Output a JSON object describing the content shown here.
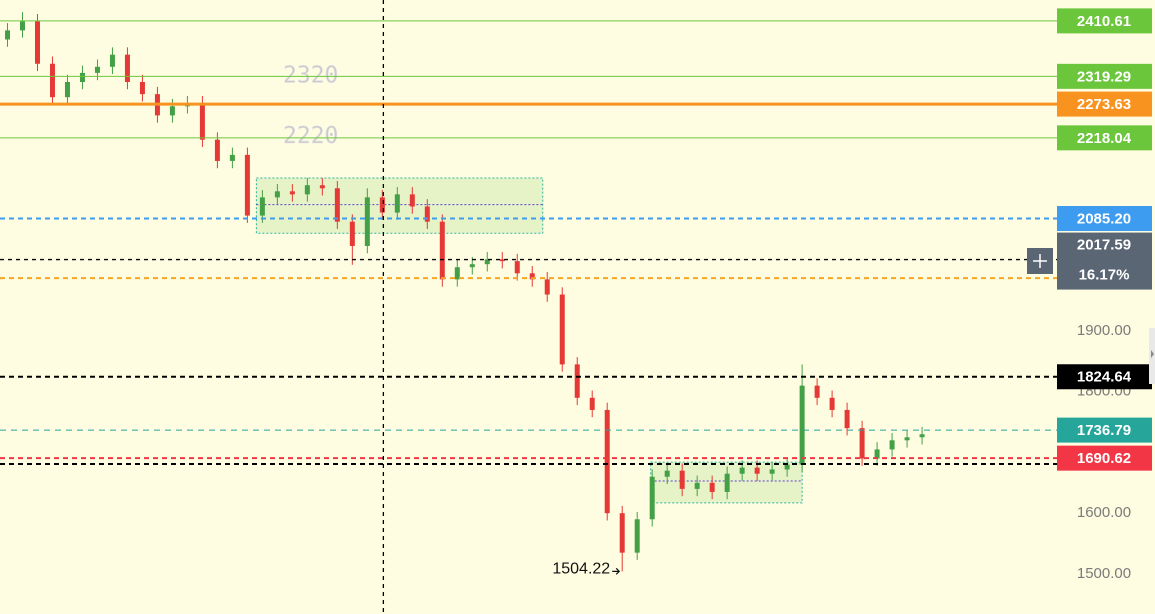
{
  "chart_data": {
    "type": "candlestick",
    "xlim": [
      -0.5,
      70
    ],
    "ylim": [
      1434,
      2445
    ],
    "yticks": [
      {
        "value": 1500,
        "label": "1500.00"
      },
      {
        "value": 1600,
        "label": "1600.00"
      },
      {
        "value": 1800,
        "label": "1800.00"
      },
      {
        "value": 1900,
        "label": "1900.00"
      }
    ],
    "up_color": "#43a047",
    "down_color": "#e53935",
    "open": [
      2380,
      2395,
      2410,
      2340,
      2285,
      2310,
      2325,
      2335,
      2355,
      2310,
      2290,
      2255,
      2270,
      2275,
      2215,
      2180,
      2190,
      2090,
      2120,
      2130,
      2125,
      2140,
      2135,
      2080,
      2040,
      2120,
      2095,
      2125,
      2105,
      2080,
      1985,
      2005,
      2010,
      2018,
      2015,
      1995,
      1985,
      1960,
      1845,
      1790,
      1770,
      1600,
      1535,
      1590,
      1660,
      1670,
      1640,
      1650,
      1635,
      1665,
      1675,
      1665,
      1672,
      1680,
      1810,
      1790,
      1770,
      1740,
      1690,
      1705,
      1720,
      1725
    ],
    "high": [
      2407,
      2425,
      2422,
      2352,
      2322,
      2337,
      2347,
      2367,
      2367,
      2322,
      2302,
      2282,
      2287,
      2287,
      2227,
      2202,
      2202,
      2132,
      2142,
      2142,
      2152,
      2152,
      2147,
      2092,
      2135,
      2132,
      2137,
      2137,
      2117,
      2092,
      2017,
      2022,
      2030,
      2030,
      2027,
      2007,
      1997,
      1972,
      1857,
      1802,
      1782,
      1612,
      1602,
      1672,
      1682,
      1682,
      1662,
      1662,
      1677,
      1687,
      1687,
      1684,
      1692,
      1845,
      1822,
      1802,
      1782,
      1752,
      1717,
      1732,
      1737,
      1742
    ],
    "low": [
      2368,
      2383,
      2328,
      2273,
      2273,
      2298,
      2313,
      2323,
      2298,
      2278,
      2243,
      2243,
      2258,
      2203,
      2168,
      2168,
      2078,
      2078,
      2108,
      2113,
      2113,
      2123,
      2068,
      2009,
      2028,
      2083,
      2083,
      2093,
      2068,
      1973,
      1973,
      1993,
      1998,
      2003,
      1983,
      1973,
      1948,
      1833,
      1778,
      1758,
      1588,
      1504.22,
      1523,
      1578,
      1648,
      1628,
      1628,
      1623,
      1623,
      1653,
      1653,
      1653,
      1660,
      1668,
      1778,
      1758,
      1728,
      1678,
      1678,
      1693,
      1708,
      1713
    ],
    "close": [
      2395,
      2410,
      2340,
      2285,
      2310,
      2325,
      2335,
      2355,
      2310,
      2290,
      2255,
      2270,
      2275,
      2215,
      2180,
      2190,
      2090,
      2120,
      2130,
      2125,
      2140,
      2135,
      2080,
      2040,
      2120,
      2095,
      2125,
      2105,
      2080,
      1985,
      2005,
      2010,
      2018,
      2015,
      1995,
      1985,
      1960,
      1845,
      1790,
      1770,
      1600,
      1535,
      1590,
      1660,
      1670,
      1640,
      1650,
      1635,
      1665,
      1675,
      1665,
      1672,
      1680,
      1810,
      1790,
      1770,
      1740,
      1690,
      1705,
      1720,
      1725,
      1730
    ],
    "levels": [
      {
        "value": 2410.61,
        "label": "2410.61",
        "color": "#6cc63c",
        "style": "solid"
      },
      {
        "value": 2319.29,
        "label": "2319.29",
        "color": "#6cc63c",
        "style": "solid"
      },
      {
        "value": 2273.63,
        "label": "2273.63",
        "color": "#f7931e",
        "style": "thick"
      },
      {
        "value": 2218.04,
        "label": "2218.04",
        "color": "#6cc63c",
        "style": "solid"
      },
      {
        "value": 2085.2,
        "label": "2085.20",
        "color": "#3d9bf0",
        "style": "dashed"
      },
      {
        "value": 1987,
        "color": "#f5a623",
        "style": "dashed"
      },
      {
        "value": 1824.64,
        "label": "1824.64",
        "color": "#000000",
        "style": "dashed"
      },
      {
        "value": 1736.79,
        "label": "1736.79",
        "color": "#26a69a",
        "style": "thin-dashed"
      },
      {
        "value": 1690.62,
        "label": "1690.62",
        "color": "#f23645",
        "style": "dashed"
      },
      {
        "value": 1681,
        "color": "#000000",
        "style": "dashed"
      }
    ],
    "zones": [
      {
        "x": [
          16.6,
          35.7
        ],
        "y": [
          2061,
          2152
        ],
        "mid": 2108
      },
      {
        "x": [
          42.9,
          53
        ],
        "y": [
          1617,
          1684
        ],
        "mid": 1653
      }
    ],
    "annotations": [
      2320,
      2220
    ],
    "low_marker": {
      "index": 41,
      "value": 1504.22
    },
    "crosshair": {
      "x": 25.07,
      "price": 2017.59,
      "change": {
        "value": 16.17,
        "label": "16.17%"
      }
    }
  }
}
